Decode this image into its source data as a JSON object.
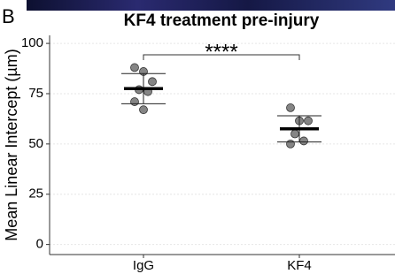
{
  "chart_data": {
    "type": "dotplot",
    "panel_label": "B",
    "title": "KF4 treatment pre-injury",
    "ylabel": "Mean Linear Intercept (µm)",
    "categories": [
      "IgG",
      "KF4"
    ],
    "groups": [
      {
        "points": [
          88,
          86,
          81,
          77,
          76,
          71,
          67
        ],
        "mean": 77.5,
        "sd": 7.5
      },
      {
        "points": [
          68,
          61.5,
          61.5,
          55,
          51.5,
          50
        ],
        "mean": 57.5,
        "sd": 6.5
      }
    ],
    "point_color": "#707070",
    "annotation": "****",
    "ylim": [
      -5,
      104
    ],
    "yticks": [
      0,
      25,
      50,
      75,
      100
    ],
    "grid": true
  }
}
